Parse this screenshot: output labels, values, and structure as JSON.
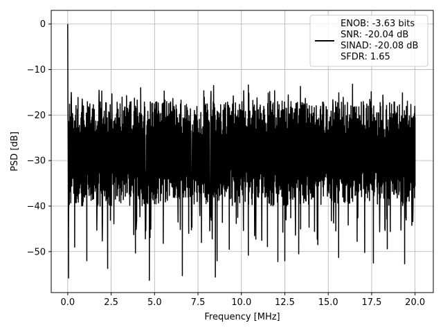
{
  "chart_data": {
    "type": "line",
    "xlabel": "Frequency [MHz]",
    "ylabel": "PSD [dB]",
    "xlim": [
      -0.95,
      21.05
    ],
    "ylim": [
      -59.0,
      3.0
    ],
    "xticks": [
      0.0,
      2.5,
      5.0,
      7.5,
      10.0,
      12.5,
      15.0,
      17.5,
      20.0
    ],
    "xtick_labels": [
      "0.0",
      "2.5",
      "5.0",
      "7.5",
      "10.0",
      "12.5",
      "15.0",
      "17.5",
      "20.0"
    ],
    "yticks": [
      0,
      -10,
      -20,
      -30,
      -40,
      -50
    ],
    "ytick_labels": [
      "0",
      "−10",
      "−20",
      "−30",
      "−40",
      "−50"
    ],
    "grid": true,
    "legend_position": "top-right",
    "series": [
      {
        "name_lines": [
          "ENOB: -3.63 bits",
          "SNR: -20.04 dB",
          "SINAD: -20.08 dB",
          "SFDR: 1.65"
        ],
        "color": "#000000",
        "x_range": [
          0.0,
          20.0
        ],
        "peak": {
          "x": 0.0,
          "y": 0.0
        },
        "noise_floor_mean": -28.0,
        "noise_upper_envelope": -17.0,
        "noise_lower_envelope": -40.0,
        "notable_minima": [
          {
            "x": 0.05,
            "y": -55.8
          },
          {
            "x": 0.4,
            "y": -49.0
          },
          {
            "x": 1.1,
            "y": -52.0
          },
          {
            "x": 2.3,
            "y": -53.7
          },
          {
            "x": 3.9,
            "y": -50.3
          },
          {
            "x": 4.7,
            "y": -56.3
          },
          {
            "x": 5.5,
            "y": -48.2
          },
          {
            "x": 6.6,
            "y": -55.3
          },
          {
            "x": 7.7,
            "y": -48.0
          },
          {
            "x": 8.6,
            "y": -52.0
          },
          {
            "x": 8.5,
            "y": -55.6
          },
          {
            "x": 9.3,
            "y": -49.5
          },
          {
            "x": 10.4,
            "y": -50.8
          },
          {
            "x": 11.5,
            "y": -48.9
          },
          {
            "x": 12.1,
            "y": -52.2
          },
          {
            "x": 12.5,
            "y": -52.0
          },
          {
            "x": 13.3,
            "y": -50.5
          },
          {
            "x": 14.4,
            "y": -48.5
          },
          {
            "x": 15.6,
            "y": -51.3
          },
          {
            "x": 17.1,
            "y": -50.2
          },
          {
            "x": 17.6,
            "y": -52.5
          },
          {
            "x": 18.4,
            "y": -49.4
          },
          {
            "x": 19.4,
            "y": -52.7
          }
        ],
        "notable_maxima": [
          {
            "x": 4.2,
            "y": -14.0
          },
          {
            "x": 8.4,
            "y": -13.5
          },
          {
            "x": 10.4,
            "y": -13.4
          },
          {
            "x": 13.4,
            "y": -13.7
          },
          {
            "x": 16.4,
            "y": -13.2
          }
        ]
      }
    ]
  }
}
